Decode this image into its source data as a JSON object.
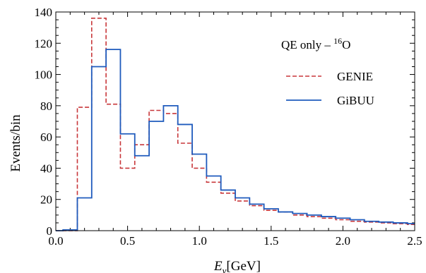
{
  "chart_data": {
    "type": "line",
    "step": true,
    "bin_edges": [
      0.0,
      0.05,
      0.15,
      0.25,
      0.35,
      0.45,
      0.55,
      0.65,
      0.75,
      0.85,
      0.95,
      1.05,
      1.15,
      1.25,
      1.35,
      1.45,
      1.55,
      1.65,
      1.75,
      1.85,
      1.95,
      2.05,
      2.15,
      2.25,
      2.35,
      2.45,
      2.5
    ],
    "series": [
      {
        "name": "GENIE",
        "color": "#c8373a",
        "dash": "dashed",
        "values": [
          0,
          0,
          79,
          136,
          81,
          40,
          55,
          77,
          75,
          56,
          40,
          31,
          24,
          19,
          16,
          13,
          12,
          10,
          9,
          8,
          7,
          6,
          5.5,
          5,
          4.5,
          4
        ]
      },
      {
        "name": "GiBUU",
        "color": "#1f5bbd",
        "dash": "solid",
        "values": [
          0,
          0.5,
          21,
          105,
          116,
          62,
          48,
          70,
          80,
          68,
          49,
          35,
          26,
          21,
          17,
          14,
          12,
          11,
          10,
          9,
          8,
          7,
          6,
          5.5,
          5,
          4.5
        ]
      }
    ],
    "title": "",
    "annotation": {
      "prefix": "QE only – ",
      "superscript": "16",
      "suffix": "O"
    },
    "xlabel": {
      "symbol": "E",
      "subscript": "ν",
      "unit": "[GeV]"
    },
    "ylabel": "Events/bin",
    "xlim": [
      0,
      2.5
    ],
    "ylim": [
      0,
      140
    ],
    "xticks": [
      0.0,
      0.5,
      1.0,
      1.5,
      2.0,
      2.5
    ],
    "xtick_labels": [
      "0.0",
      "0.5",
      "1.0",
      "1.5",
      "2.0",
      "2.5"
    ],
    "yticks": [
      0,
      20,
      40,
      60,
      80,
      100,
      120,
      140
    ],
    "ytick_labels": [
      "0",
      "20",
      "40",
      "60",
      "80",
      "100",
      "120",
      "140"
    ],
    "grid": false,
    "legend_position": "top-right"
  }
}
